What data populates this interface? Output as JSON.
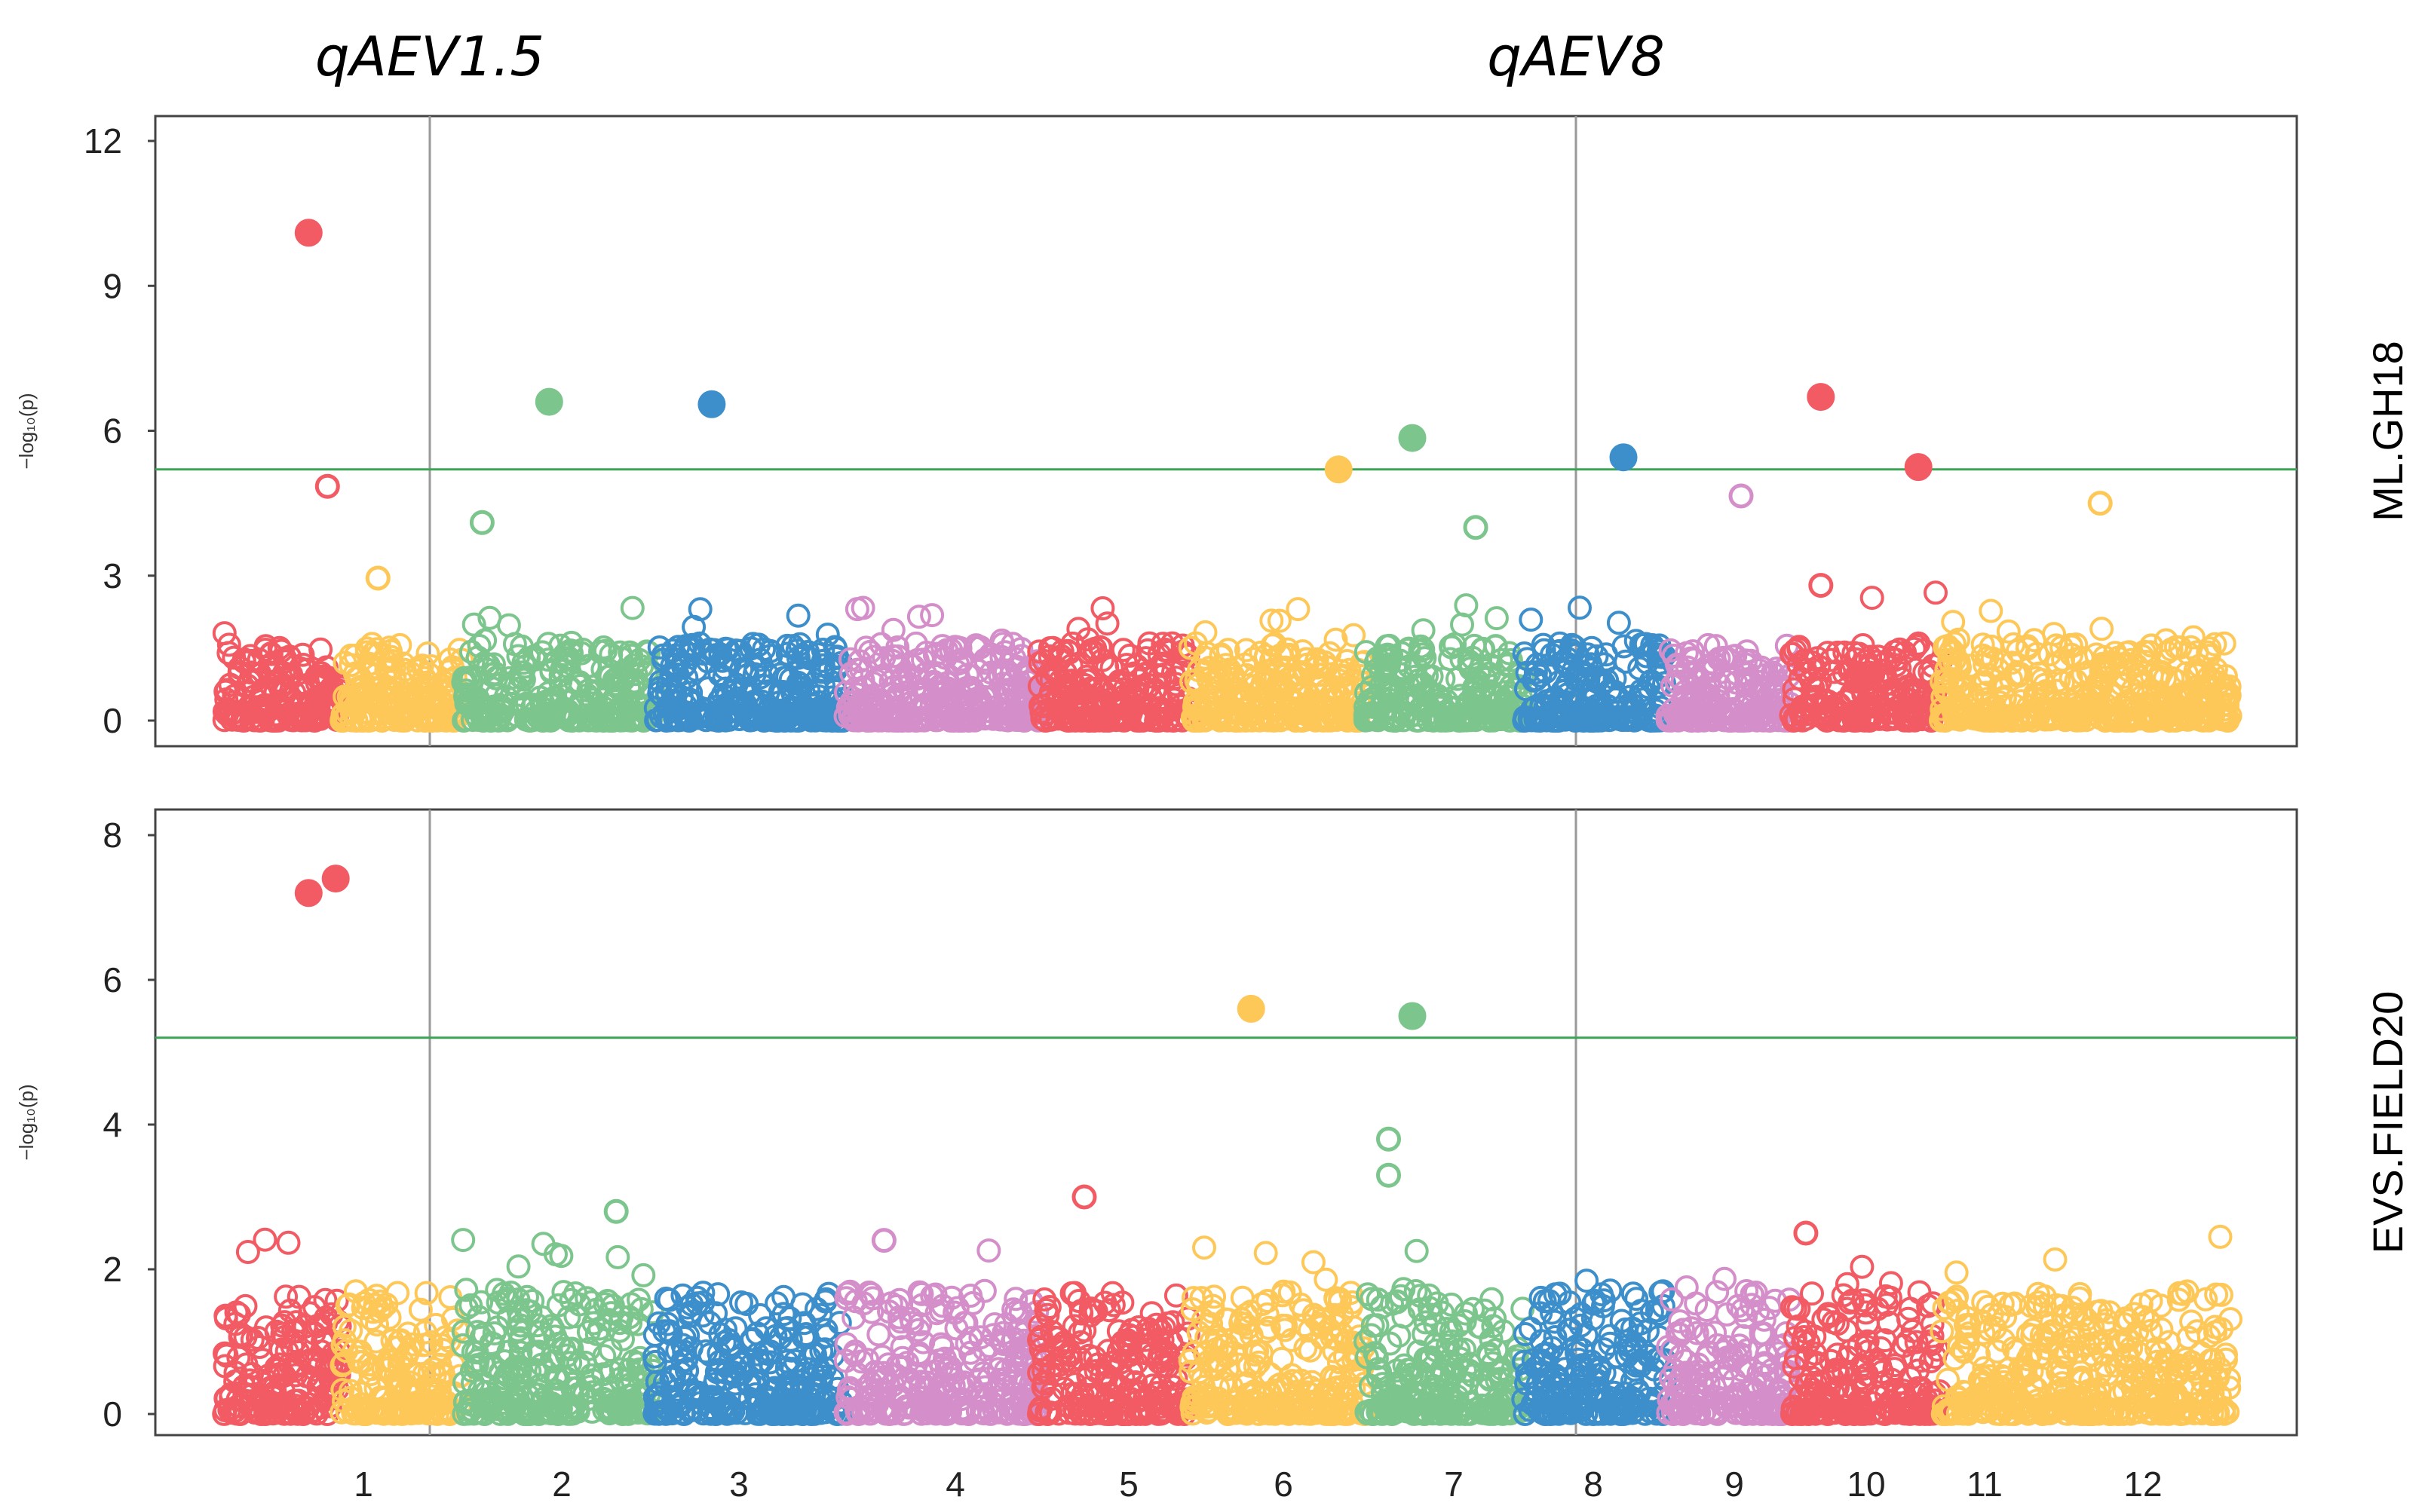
{
  "chart_data": {
    "type": "scatter",
    "subtype": "manhattan",
    "colors": [
      "#f25b64",
      "#fec859",
      "#7cc58c",
      "#3c8fcb",
      "#d48ec9"
    ],
    "qtl_labels": [
      {
        "label": "qAEV1.5",
        "chromosome": 1
      },
      {
        "label": "qAEV8",
        "chromosome": 8
      }
    ],
    "x_tick_labels": [
      "1",
      "2",
      "3",
      "4",
      "5",
      "6",
      "7",
      "8",
      "9",
      "10",
      "11",
      "12"
    ],
    "ylabel": "−log₁₀(p)",
    "grid": false,
    "panels": [
      {
        "name": "ML.GH18",
        "ylim": [
          0,
          12.5
        ],
        "yticks": [
          "0",
          "3",
          "6",
          "9",
          "12"
        ],
        "threshold": 5.2,
        "top_points": [
          {
            "chr": 1,
            "pos": 0.72,
            "y": 10.1
          },
          {
            "chr": 1,
            "pos": 0.88,
            "y": 4.85
          },
          {
            "chr": 3,
            "pos": 0.45,
            "y": 6.6
          },
          {
            "chr": 4,
            "pos": 0.3,
            "y": 6.55
          },
          {
            "chr": 7,
            "pos": 0.85,
            "y": 5.2
          },
          {
            "chr": 8,
            "pos": 0.3,
            "y": 5.85
          },
          {
            "chr": 8,
            "pos": 0.7,
            "y": 4.0
          },
          {
            "chr": 9,
            "pos": 0.7,
            "y": 5.45
          },
          {
            "chr": 10,
            "pos": 0.6,
            "y": 4.65
          },
          {
            "chr": 11,
            "pos": 0.2,
            "y": 6.7
          },
          {
            "chr": 11,
            "pos": 0.2,
            "y": 2.8
          },
          {
            "chr": 11,
            "pos": 0.85,
            "y": 5.25
          },
          {
            "chr": 12,
            "pos": 0.55,
            "y": 4.5
          },
          {
            "chr": 2,
            "pos": 0.3,
            "y": 2.95
          },
          {
            "chr": 3,
            "pos": 0.1,
            "y": 4.1
          }
        ]
      },
      {
        "name": "EVS.FIELD20",
        "ylim": [
          0,
          8.4
        ],
        "yticks": [
          "0",
          "2",
          "4",
          "6",
          "8"
        ],
        "threshold": 5.2,
        "top_points": [
          {
            "chr": 1,
            "pos": 0.72,
            "y": 7.2
          },
          {
            "chr": 1,
            "pos": 0.95,
            "y": 7.4
          },
          {
            "chr": 7,
            "pos": 0.35,
            "y": 5.6
          },
          {
            "chr": 8,
            "pos": 0.3,
            "y": 5.5
          },
          {
            "chr": 8,
            "pos": 0.15,
            "y": 3.8
          },
          {
            "chr": 8,
            "pos": 0.15,
            "y": 3.3
          },
          {
            "chr": 6,
            "pos": 0.3,
            "y": 3.0
          },
          {
            "chr": 3,
            "pos": 0.8,
            "y": 2.8
          },
          {
            "chr": 11,
            "pos": 0.1,
            "y": 2.5
          },
          {
            "chr": 5,
            "pos": 0.2,
            "y": 2.4
          }
        ]
      }
    ]
  }
}
